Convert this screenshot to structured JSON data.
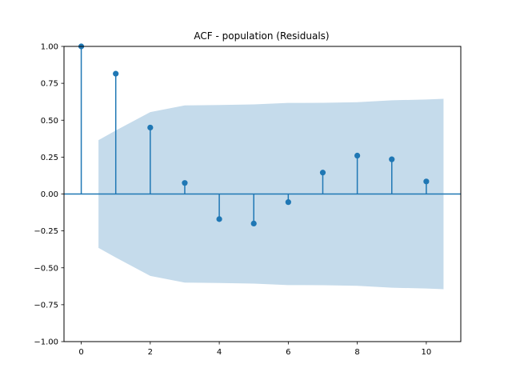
{
  "chart_data": {
    "type": "stem",
    "title": "ACF - population (Residuals)",
    "xlabel": "",
    "ylabel": "",
    "xlim": [
      -0.5,
      11
    ],
    "ylim": [
      -1.0,
      1.0
    ],
    "x_ticks": [
      0,
      2,
      4,
      6,
      8,
      10
    ],
    "y_ticks": [
      -1.0,
      -0.75,
      -0.5,
      -0.25,
      0.0,
      0.25,
      0.5,
      0.75,
      1.0
    ],
    "y_tick_labels": [
      "−1.00",
      "−0.75",
      "−0.50",
      "−0.25",
      "0.00",
      "0.25",
      "0.50",
      "0.75",
      "1.00"
    ],
    "lags": [
      0,
      1,
      2,
      3,
      4,
      5,
      6,
      7,
      8,
      9,
      10
    ],
    "acf": [
      1.0,
      0.815,
      0.45,
      0.075,
      -0.17,
      -0.2,
      -0.055,
      0.145,
      0.26,
      0.235,
      0.085
    ],
    "confint": {
      "x": [
        0.5,
        1,
        2,
        3,
        4,
        5,
        6,
        7,
        8,
        9,
        10,
        10.5
      ],
      "upper": [
        0.365,
        0.43,
        0.555,
        0.6,
        0.603,
        0.607,
        0.617,
        0.618,
        0.622,
        0.635,
        0.64,
        0.645
      ],
      "lower": [
        -0.365,
        -0.43,
        -0.555,
        -0.6,
        -0.603,
        -0.607,
        -0.617,
        -0.618,
        -0.622,
        -0.635,
        -0.64,
        -0.645
      ]
    },
    "grid": false,
    "colors": {
      "stem": "#1f77b4",
      "band": "#c5dbeb",
      "axes": "#000000"
    }
  }
}
